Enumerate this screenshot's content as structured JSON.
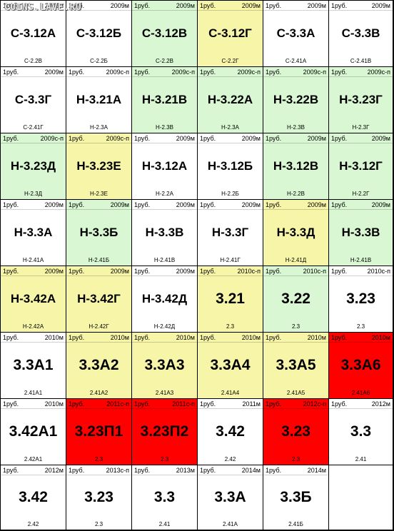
{
  "watermark": "COINS.LAVE.RU",
  "colors": {
    "white": "#ffffff",
    "green": "#d8f7d2",
    "yellow": "#f7f5a8",
    "red": "#ff0000"
  },
  "cells": [
    {
      "c": "white",
      "tl": "1руб.",
      "tr": "2009м",
      "main": "С-3.12А",
      "bl": "С-2.2В"
    },
    {
      "c": "white",
      "tl": "1руб.",
      "tr": "2009м",
      "main": "С-3.12Б",
      "bl": "С-2.2Б"
    },
    {
      "c": "green",
      "tl": "1руб.",
      "tr": "2009м",
      "main": "С-3.12В",
      "bl": "С-2.2В"
    },
    {
      "c": "yellow",
      "tl": "1руб.",
      "tr": "2009м",
      "main": "С-3.12Г",
      "bl": "С-2.2Г"
    },
    {
      "c": "white",
      "tl": "1руб.",
      "tr": "2009м",
      "main": "С-3.3А",
      "bl": "С-2.41А"
    },
    {
      "c": "white",
      "tl": "1руб.",
      "tr": "2009м",
      "main": "С-3.3В",
      "bl": "С-2.41В"
    },
    {
      "c": "white",
      "tl": "1руб.",
      "tr": "2009м",
      "main": "С-3.3Г",
      "bl": "С-2.41Г"
    },
    {
      "c": "white",
      "tl": "1руб.",
      "tr": "2009с-п",
      "main": "Н-3.21А",
      "bl": "Н-2.3А"
    },
    {
      "c": "green",
      "tl": "1руб.",
      "tr": "2009с-п",
      "main": "Н-3.21В",
      "bl": "Н-2.3В"
    },
    {
      "c": "green",
      "tl": "1руб.",
      "tr": "2009с-п",
      "main": "Н-3.22А",
      "bl": "Н-2.3А"
    },
    {
      "c": "green",
      "tl": "1руб.",
      "tr": "2009с-п",
      "main": "Н-3.22В",
      "bl": "Н-2.3В"
    },
    {
      "c": "green",
      "tl": "1руб.",
      "tr": "2009с-п",
      "main": "Н-3.23Г",
      "bl": "Н-2.3Г"
    },
    {
      "c": "green",
      "tl": "1руб.",
      "tr": "2009с-п",
      "main": "Н-3.23Д",
      "bl": "Н-2.3Д"
    },
    {
      "c": "yellow",
      "tl": "1руб.",
      "tr": "2009с-п",
      "main": "Н-3.23Е",
      "bl": "Н-2.3Е"
    },
    {
      "c": "white",
      "tl": "1руб.",
      "tr": "2009м",
      "main": "Н-3.12А",
      "bl": "Н-2.2А"
    },
    {
      "c": "white",
      "tl": "1руб.",
      "tr": "2009м",
      "main": "Н-3.12Б",
      "bl": "Н-2.2Б"
    },
    {
      "c": "green",
      "tl": "1руб.",
      "tr": "2009м",
      "main": "Н-3.12В",
      "bl": "Н-2.2В"
    },
    {
      "c": "green",
      "tl": "1руб.",
      "tr": "2009м",
      "main": "Н-3.12Г",
      "bl": "Н-2.2Г"
    },
    {
      "c": "white",
      "tl": "1руб.",
      "tr": "2009м",
      "main": "Н-3.3А",
      "bl": "Н-2.41А"
    },
    {
      "c": "green",
      "tl": "1руб.",
      "tr": "2009м",
      "main": "Н-3.3Б",
      "bl": "Н-2.41Б"
    },
    {
      "c": "white",
      "tl": "1руб.",
      "tr": "2009м",
      "main": "Н-3.3В",
      "bl": "Н-2.41В"
    },
    {
      "c": "white",
      "tl": "1руб.",
      "tr": "2009м",
      "main": "Н-3.3Г",
      "bl": "Н-2.41Г"
    },
    {
      "c": "yellow",
      "tl": "1руб.",
      "tr": "2009м",
      "main": "Н-3.3Д",
      "bl": "Н-2.41Д"
    },
    {
      "c": "green",
      "tl": "1руб.",
      "tr": "2009м",
      "main": "Н-3.3В",
      "bl": "Н-2.41В"
    },
    {
      "c": "yellow",
      "tl": "1руб.",
      "tr": "2009м",
      "main": "Н-3.42А",
      "bl": "Н-2.42А"
    },
    {
      "c": "yellow",
      "tl": "1руб.",
      "tr": "2009м",
      "main": "Н-3.42Г",
      "bl": "Н-2.42Г"
    },
    {
      "c": "white",
      "tl": "1руб.",
      "tr": "2009м",
      "main": "Н-3.42Д",
      "bl": "Н-2.42Д"
    },
    {
      "c": "yellow",
      "tl": "1руб.",
      "tr": "2010с-п",
      "main": "3.21",
      "bl": "2.3"
    },
    {
      "c": "green",
      "tl": "1руб.",
      "tr": "2010с-п",
      "main": "3.22",
      "bl": "2.3"
    },
    {
      "c": "white",
      "tl": "1руб.",
      "tr": "2010с-п",
      "main": "3.23",
      "bl": "2.3"
    },
    {
      "c": "white",
      "tl": "1руб.",
      "tr": "2010м",
      "main": "3.3А1",
      "bl": "2.41А1"
    },
    {
      "c": "yellow",
      "tl": "1руб.",
      "tr": "2010м",
      "main": "3.3А2",
      "bl": "2.41А2"
    },
    {
      "c": "yellow",
      "tl": "1руб.",
      "tr": "2010м",
      "main": "3.3А3",
      "bl": "2.41А3"
    },
    {
      "c": "yellow",
      "tl": "1руб.",
      "tr": "2010м",
      "main": "3.3А4",
      "bl": "2.41А4"
    },
    {
      "c": "yellow",
      "tl": "1руб.",
      "tr": "2010м",
      "main": "3.3А5",
      "bl": "2.41А5"
    },
    {
      "c": "red",
      "tl": "1руб.",
      "tr": "2010м",
      "main": "3.3А6",
      "bl": "2.41А6"
    },
    {
      "c": "white",
      "tl": "1руб.",
      "tr": "2010м",
      "main": "3.42А1",
      "bl": "2.42А1"
    },
    {
      "c": "red",
      "tl": "1руб.",
      "tr": "2011с-п",
      "main": "3.23П1",
      "bl": "2.3"
    },
    {
      "c": "red",
      "tl": "1руб.",
      "tr": "2011с-п",
      "main": "3.23П2",
      "bl": "2.3"
    },
    {
      "c": "white",
      "tl": "1руб.",
      "tr": "2011м",
      "main": "3.42",
      "bl": "2.42"
    },
    {
      "c": "red",
      "tl": "1руб.",
      "tr": "2012с-п",
      "main": "3.23",
      "bl": "2.3"
    },
    {
      "c": "white",
      "tl": "1руб.",
      "tr": "2012м",
      "main": "3.3",
      "bl": "2.41"
    },
    {
      "c": "white",
      "tl": "1руб.",
      "tr": "2012м",
      "main": "3.42",
      "bl": "2.42"
    },
    {
      "c": "white",
      "tl": "1руб.",
      "tr": "2013с-п",
      "main": "3.23",
      "bl": "2.3"
    },
    {
      "c": "white",
      "tl": "1руб.",
      "tr": "2013м",
      "main": "3.3",
      "bl": "2.41"
    },
    {
      "c": "white",
      "tl": "1руб.",
      "tr": "2014м",
      "main": "3.3А",
      "bl": "2.41А"
    },
    {
      "c": "white",
      "tl": "1руб.",
      "tr": "2014м",
      "main": "3.3Б",
      "bl": "2.41Б"
    },
    {
      "c": "white",
      "tl": "",
      "tr": "",
      "main": "",
      "bl": ""
    }
  ]
}
